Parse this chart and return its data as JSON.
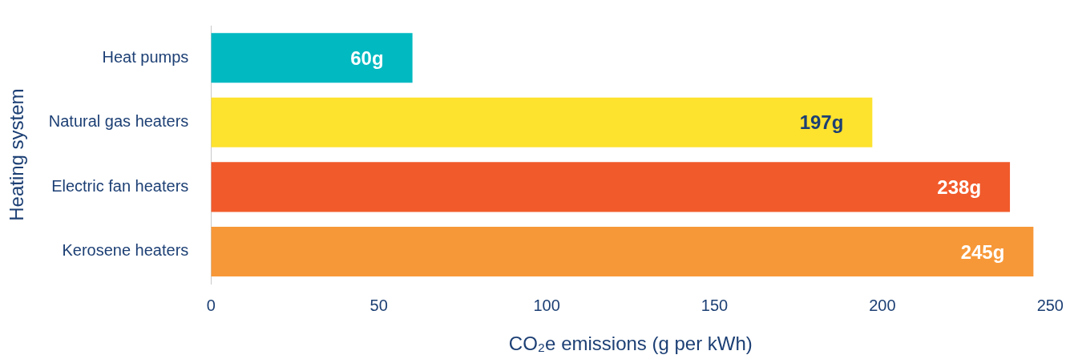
{
  "chart_data": {
    "type": "bar",
    "orientation": "horizontal",
    "xlabel": "CO₂e emissions (g per kWh)",
    "ylabel": "Heating system",
    "categories": [
      "Heat pumps",
      "Natural gas heaters",
      "Electric fan heaters",
      "Kerosene heaters"
    ],
    "values": [
      60,
      197,
      238,
      245
    ],
    "colors": [
      "#00b9c1",
      "#fde22e",
      "#f15a2b",
      "#f79838"
    ],
    "value_labels": [
      "60g",
      "197g",
      "238g",
      "245g"
    ],
    "xlim": [
      0,
      250
    ],
    "xticks": [
      0,
      50,
      100,
      150,
      200,
      250
    ],
    "grid": false,
    "legend": false
  }
}
